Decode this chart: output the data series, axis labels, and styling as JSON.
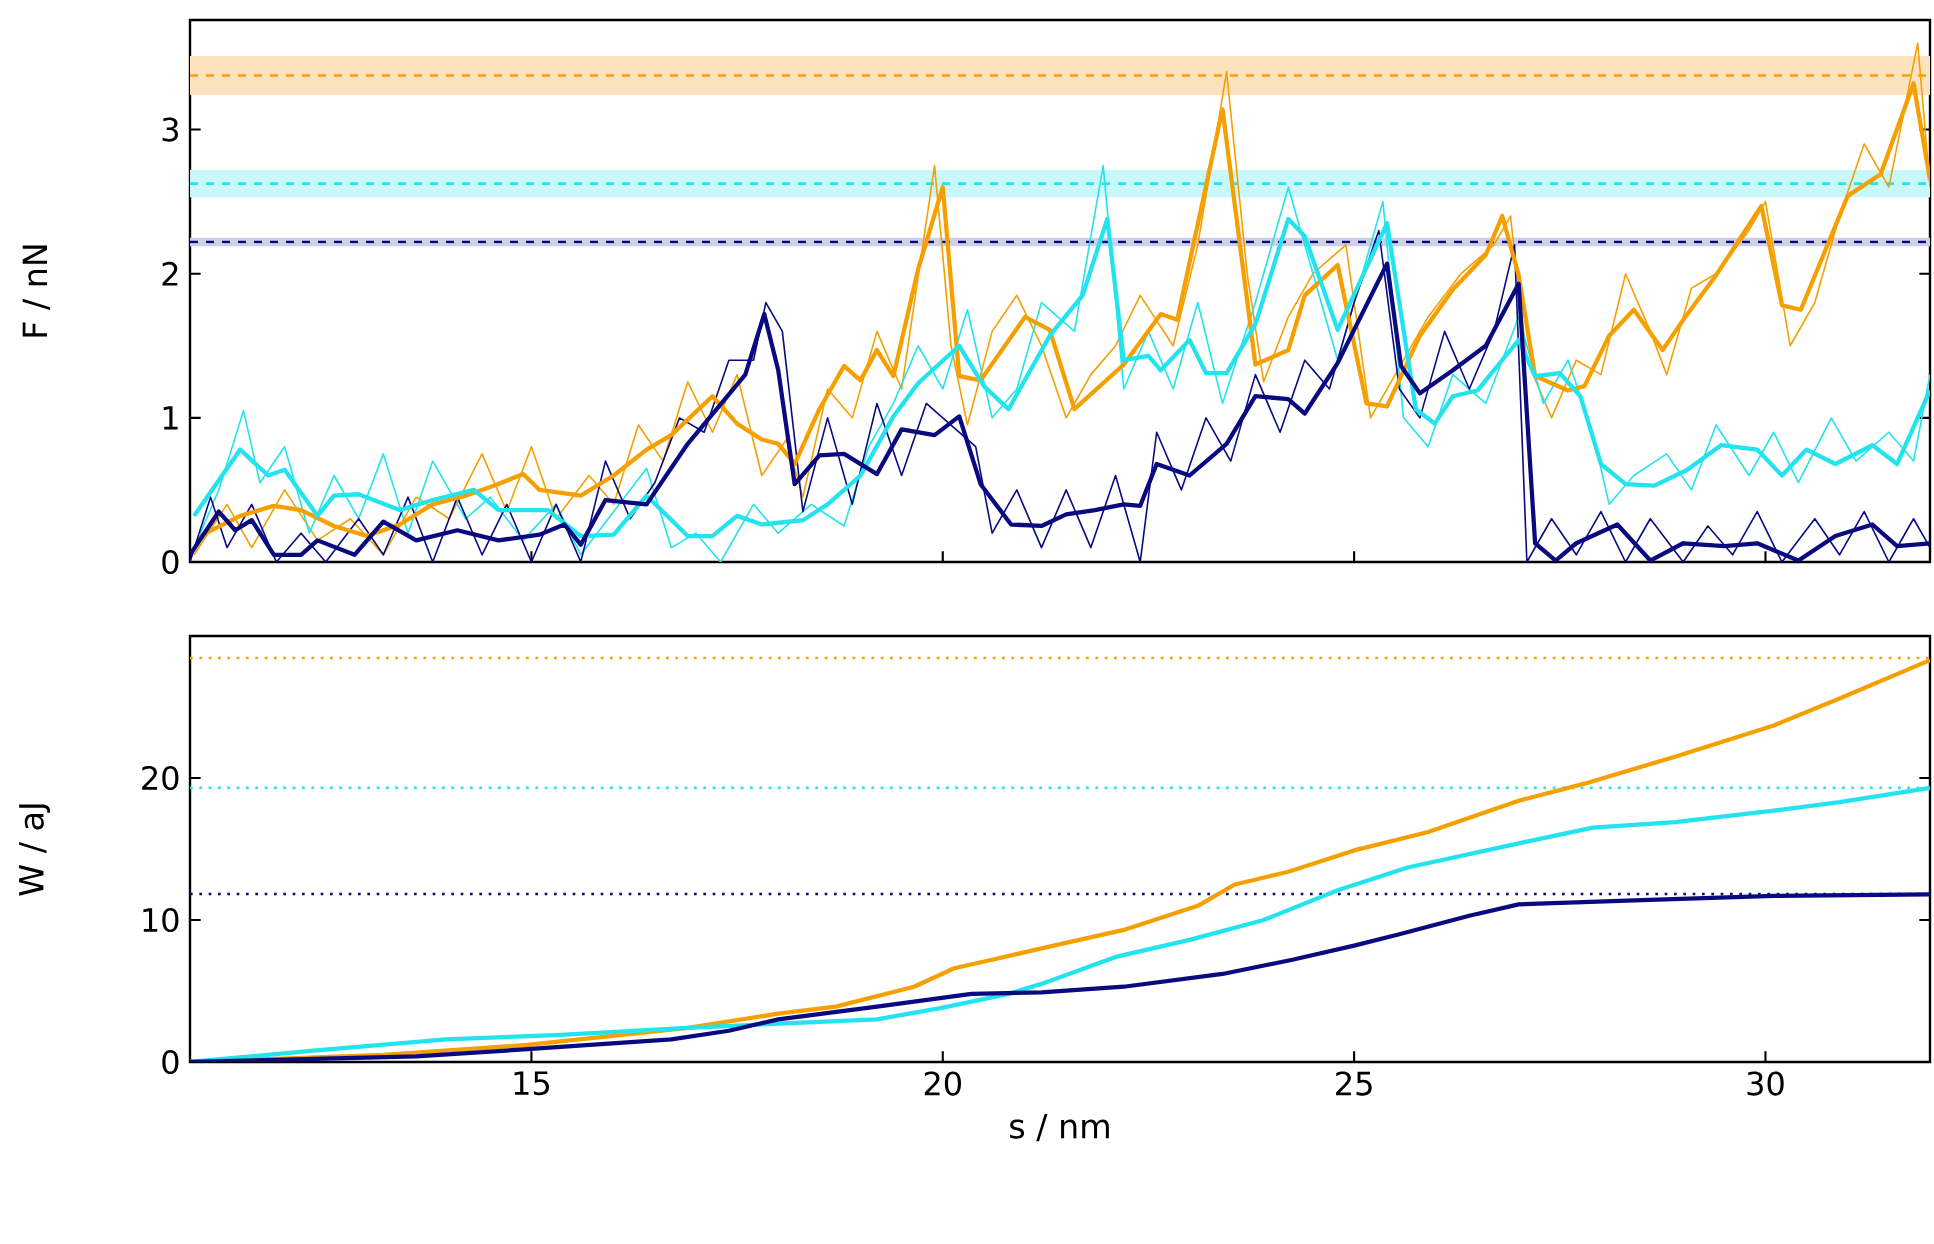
{
  "chart_data": [
    {
      "type": "line",
      "ylabel": "F / nN",
      "xlim": [
        10.85,
        32.0
      ],
      "xticks": [
        {
          "value": 15,
          "label": null
        },
        {
          "value": 20,
          "label": null
        },
        {
          "value": 25,
          "label": null
        },
        {
          "value": 30,
          "label": null
        }
      ],
      "ylim": [
        0,
        3.76
      ],
      "yticks": [
        0,
        1,
        2,
        3
      ],
      "tick_labels": "y",
      "bands": [
        {
          "axis": "y",
          "from": 3.24,
          "to": 3.51,
          "color": "#fde3bd"
        },
        {
          "axis": "y",
          "from": 2.53,
          "to": 2.72,
          "color": "#c9f8fb"
        },
        {
          "axis": "y",
          "from": 2.19,
          "to": 2.25,
          "color": "#cfcfe8"
        }
      ],
      "ref_lines": [
        {
          "axis": "y",
          "value": 3.375,
          "color": "#f5a000",
          "line_style": "dashed"
        },
        {
          "axis": "y",
          "value": 2.625,
          "color": "#22e3ee",
          "line_style": "dashed"
        },
        {
          "axis": "y",
          "value": 2.22,
          "color": "#0a0a80",
          "line_style": "dashed"
        }
      ],
      "series": [
        {
          "color": "#f5a000",
          "x": [
            10.9,
            11.3,
            11.6,
            12.0,
            12.4,
            12.8,
            13.2,
            13.6,
            14.0,
            14.4,
            14.7,
            15.0,
            15.3,
            15.7,
            16.0,
            16.3,
            16.6,
            16.9,
            17.2,
            17.5,
            17.8,
            18.1,
            18.3,
            18.6,
            18.9,
            19.2,
            19.5,
            19.9,
            20.1,
            20.3,
            20.6,
            20.9,
            21.2,
            21.5,
            21.8,
            22.1,
            22.4,
            22.8,
            23.1,
            23.45,
            23.7,
            23.9,
            24.2,
            24.5,
            24.9,
            25.2,
            25.5,
            25.9,
            26.3,
            26.7,
            26.9,
            27.1,
            27.4,
            27.7,
            28.0,
            28.3,
            28.6,
            28.8,
            29.1,
            29.4,
            29.8,
            30.0,
            30.3,
            30.6,
            30.9,
            31.2,
            31.5,
            31.85,
            32.0
          ],
          "values": [
            0.05,
            0.4,
            0.1,
            0.5,
            0.15,
            0.3,
            0.05,
            0.45,
            0.3,
            0.75,
            0.35,
            0.8,
            0.3,
            0.6,
            0.4,
            0.95,
            0.7,
            1.25,
            0.9,
            1.3,
            0.6,
            0.85,
            0.45,
            1.2,
            1.0,
            1.6,
            1.2,
            2.75,
            1.5,
            0.95,
            1.6,
            1.85,
            1.5,
            1.0,
            1.3,
            1.5,
            1.85,
            1.5,
            2.2,
            3.4,
            2.0,
            1.25,
            1.7,
            2.0,
            2.2,
            1.0,
            1.3,
            1.7,
            2.0,
            2.2,
            2.4,
            1.4,
            1.0,
            1.4,
            1.3,
            2.0,
            1.6,
            1.3,
            1.9,
            2.0,
            2.3,
            2.5,
            1.5,
            1.8,
            2.4,
            2.9,
            2.6,
            3.6,
            2.6
          ]
        },
        {
          "color": "#22e3ee",
          "x": [
            10.9,
            11.2,
            11.5,
            11.7,
            12.0,
            12.3,
            12.6,
            12.9,
            13.2,
            13.5,
            13.8,
            14.2,
            14.5,
            14.9,
            15.3,
            15.6,
            16.0,
            16.4,
            16.7,
            17.0,
            17.3,
            17.7,
            18.0,
            18.4,
            18.8,
            19.1,
            19.4,
            19.7,
            20.0,
            20.3,
            20.6,
            20.9,
            21.2,
            21.6,
            21.95,
            22.2,
            22.5,
            22.8,
            23.1,
            23.4,
            23.8,
            24.2,
            24.5,
            24.8,
            25.2,
            25.35,
            25.6,
            25.9,
            26.2,
            26.6,
            27.0,
            27.3,
            27.6,
            27.9,
            28.1,
            28.4,
            28.8,
            29.1,
            29.4,
            29.8,
            30.1,
            30.4,
            30.8,
            31.1,
            31.5,
            31.8,
            32.0
          ],
          "values": [
            0.1,
            0.5,
            1.05,
            0.55,
            0.8,
            0.2,
            0.6,
            0.3,
            0.75,
            0.2,
            0.7,
            0.3,
            0.45,
            0.15,
            0.4,
            0.05,
            0.35,
            0.65,
            0.1,
            0.2,
            0.0,
            0.4,
            0.2,
            0.4,
            0.25,
            0.8,
            1.1,
            1.5,
            1.2,
            1.75,
            1.0,
            1.2,
            1.8,
            1.6,
            2.75,
            1.2,
            1.6,
            1.2,
            1.8,
            1.1,
            1.8,
            2.6,
            2.0,
            1.4,
            2.2,
            2.5,
            1.0,
            0.8,
            1.3,
            1.1,
            1.7,
            1.1,
            1.4,
            0.9,
            0.4,
            0.6,
            0.75,
            0.5,
            0.95,
            0.6,
            0.9,
            0.55,
            1.0,
            0.7,
            0.9,
            0.7,
            1.3
          ]
        },
        {
          "color": "#0a0a80",
          "x": [
            10.85,
            11.1,
            11.3,
            11.6,
            11.9,
            12.2,
            12.5,
            12.9,
            13.2,
            13.5,
            13.8,
            14.1,
            14.4,
            14.7,
            15.0,
            15.3,
            15.6,
            15.9,
            16.2,
            16.5,
            16.8,
            17.1,
            17.4,
            17.7,
            17.85,
            18.05,
            18.3,
            18.6,
            18.9,
            19.2,
            19.5,
            19.8,
            20.1,
            20.4,
            20.6,
            20.9,
            21.2,
            21.5,
            21.8,
            22.1,
            22.4,
            22.6,
            22.9,
            23.2,
            23.5,
            23.8,
            24.1,
            24.4,
            24.7,
            25.0,
            25.3,
            25.55,
            25.8,
            26.1,
            26.4,
            26.7,
            26.95,
            27.1,
            27.4,
            27.7,
            28.0,
            28.3,
            28.6,
            29.0,
            29.3,
            29.6,
            29.9,
            30.2,
            30.6,
            30.9,
            31.2,
            31.5,
            31.8,
            32.0
          ],
          "values": [
            0.0,
            0.45,
            0.1,
            0.4,
            0.0,
            0.2,
            0.0,
            0.3,
            0.05,
            0.45,
            0.0,
            0.45,
            0.05,
            0.4,
            0.0,
            0.4,
            0.0,
            0.7,
            0.3,
            0.55,
            1.0,
            0.9,
            1.4,
            1.4,
            1.8,
            1.6,
            0.35,
            1.0,
            0.4,
            1.1,
            0.6,
            1.1,
            0.95,
            0.8,
            0.2,
            0.5,
            0.1,
            0.5,
            0.1,
            0.6,
            0.0,
            0.9,
            0.5,
            1.0,
            0.7,
            1.3,
            0.9,
            1.4,
            1.2,
            1.8,
            2.3,
            1.2,
            1.0,
            1.6,
            1.2,
            1.6,
            2.2,
            0.0,
            0.3,
            0.05,
            0.35,
            0.0,
            0.3,
            0.0,
            0.25,
            0.05,
            0.35,
            0.0,
            0.3,
            0.05,
            0.35,
            0.0,
            0.3,
            0.1
          ]
        },
        {
          "color": "#f5a000",
          "x": [
            10.97,
            11.46,
            11.87,
            12.2,
            12.6,
            13.0,
            13.4,
            13.8,
            14.2,
            14.55,
            14.9,
            15.1,
            15.6,
            16.0,
            16.4,
            16.7,
            17.2,
            17.5,
            17.8,
            18.0,
            18.2,
            18.5,
            18.8,
            19.0,
            19.2,
            19.4,
            19.7,
            20.0,
            20.2,
            20.46,
            21.0,
            21.3,
            21.6,
            22.2,
            22.65,
            22.85,
            23.4,
            23.8,
            24.2,
            24.4,
            24.8,
            25.15,
            25.4,
            25.8,
            26.2,
            26.6,
            26.8,
            27.0,
            27.2,
            27.6,
            27.8,
            28.1,
            28.4,
            28.75,
            29.0,
            29.4,
            29.95,
            30.2,
            30.43,
            31.0,
            31.4,
            31.8,
            32.0
          ],
          "values": [
            0.18,
            0.32,
            0.39,
            0.36,
            0.25,
            0.18,
            0.26,
            0.4,
            0.46,
            0.53,
            0.61,
            0.5,
            0.46,
            0.6,
            0.78,
            0.88,
            1.15,
            0.96,
            0.85,
            0.82,
            0.68,
            1.06,
            1.36,
            1.26,
            1.47,
            1.29,
            2.03,
            2.6,
            1.29,
            1.26,
            1.7,
            1.61,
            1.06,
            1.37,
            1.72,
            1.68,
            3.14,
            1.37,
            1.47,
            1.85,
            2.06,
            1.1,
            1.08,
            1.57,
            1.89,
            2.13,
            2.4,
            1.99,
            1.29,
            1.19,
            1.22,
            1.57,
            1.75,
            1.47,
            1.68,
            1.99,
            2.47,
            1.78,
            1.75,
            2.54,
            2.69,
            3.32,
            2.65
          ]
        },
        {
          "color": "#22e3ee",
          "x": [
            10.9,
            11.46,
            11.8,
            12.0,
            12.4,
            12.6,
            12.9,
            13.4,
            13.8,
            14.3,
            14.6,
            15.2,
            15.6,
            16.0,
            16.4,
            16.9,
            17.2,
            17.5,
            17.8,
            18.3,
            18.6,
            19.0,
            19.4,
            19.7,
            20.2,
            20.5,
            20.8,
            21.3,
            21.7,
            22.0,
            22.2,
            22.5,
            22.65,
            23.0,
            23.2,
            23.45,
            23.8,
            24.2,
            24.4,
            24.8,
            25.4,
            25.75,
            25.98,
            26.2,
            26.5,
            27.0,
            27.2,
            27.5,
            27.75,
            28.0,
            28.3,
            28.65,
            29.05,
            29.46,
            29.9,
            30.2,
            30.5,
            30.85,
            31.3,
            31.6,
            32.0
          ],
          "values": [
            0.32,
            0.78,
            0.6,
            0.64,
            0.32,
            0.46,
            0.47,
            0.36,
            0.43,
            0.5,
            0.36,
            0.36,
            0.18,
            0.19,
            0.46,
            0.18,
            0.18,
            0.32,
            0.26,
            0.29,
            0.4,
            0.6,
            1.01,
            1.24,
            1.5,
            1.22,
            1.06,
            1.57,
            1.85,
            2.38,
            1.4,
            1.43,
            1.33,
            1.54,
            1.31,
            1.31,
            1.65,
            2.38,
            2.26,
            1.61,
            2.35,
            1.06,
            0.96,
            1.15,
            1.19,
            1.54,
            1.29,
            1.31,
            1.15,
            0.68,
            0.54,
            0.53,
            0.64,
            0.81,
            0.78,
            0.6,
            0.78,
            0.68,
            0.81,
            0.68,
            1.19
          ]
        },
        {
          "color": "#0a0a80",
          "x": [
            10.85,
            11.2,
            11.4,
            11.6,
            11.87,
            12.2,
            12.4,
            12.85,
            13.2,
            13.6,
            14.1,
            14.6,
            15.1,
            15.4,
            15.6,
            15.9,
            16.4,
            16.9,
            17.6,
            17.83,
            18.0,
            18.2,
            18.5,
            18.8,
            19.2,
            19.5,
            19.9,
            20.2,
            20.46,
            20.83,
            21.2,
            21.5,
            21.85,
            22.2,
            22.4,
            22.6,
            23.0,
            23.45,
            23.8,
            24.2,
            24.4,
            24.8,
            25.4,
            25.57,
            25.8,
            26.2,
            26.6,
            27.0,
            27.2,
            27.45,
            27.7,
            28.2,
            28.6,
            29.0,
            29.5,
            29.9,
            30.4,
            30.85,
            31.3,
            31.6,
            32.0
          ],
          "values": [
            0.05,
            0.35,
            0.22,
            0.29,
            0.05,
            0.05,
            0.15,
            0.05,
            0.28,
            0.15,
            0.22,
            0.15,
            0.19,
            0.26,
            0.12,
            0.43,
            0.4,
            0.82,
            1.3,
            1.72,
            1.33,
            0.54,
            0.74,
            0.75,
            0.61,
            0.92,
            0.88,
            1.01,
            0.54,
            0.26,
            0.25,
            0.33,
            0.36,
            0.4,
            0.39,
            0.68,
            0.6,
            0.82,
            1.15,
            1.13,
            1.03,
            1.38,
            2.07,
            1.36,
            1.17,
            1.33,
            1.5,
            1.93,
            0.13,
            0.01,
            0.13,
            0.26,
            0.01,
            0.13,
            0.11,
            0.13,
            0.01,
            0.18,
            0.26,
            0.11,
            0.13
          ]
        }
      ]
    },
    {
      "type": "line",
      "xlabel": "s / nm",
      "ylabel": "W / aJ",
      "xlim": [
        10.85,
        32.0
      ],
      "xticks": [
        15,
        20,
        25,
        30
      ],
      "ylim": [
        0,
        30
      ],
      "yticks": [
        0,
        10,
        20
      ],
      "ref_lines": [
        {
          "axis": "y",
          "value": 28.45,
          "color": "#f5a000",
          "line_style": "dotted"
        },
        {
          "axis": "y",
          "value": 19.3,
          "color": "#22e3ee",
          "line_style": "dotted"
        },
        {
          "axis": "y",
          "value": 11.83,
          "color": "#0a0a80",
          "line_style": "dotted"
        }
      ],
      "series": [
        {
          "color": "#f5a000",
          "x": [
            10.85,
            13.2,
            14.95,
            16.9,
            18.0,
            18.7,
            19.65,
            20.14,
            20.6,
            21.2,
            22.2,
            23.1,
            23.55,
            24.2,
            25.0,
            25.9,
            27.0,
            27.8,
            28.9,
            30.1,
            30.9,
            32.0
          ],
          "values": [
            0,
            0.5,
            1.2,
            2.4,
            3.4,
            3.9,
            5.3,
            6.6,
            7.2,
            8.0,
            9.3,
            11.0,
            12.5,
            13.4,
            14.9,
            16.2,
            18.4,
            19.6,
            21.5,
            23.7,
            25.6,
            28.3
          ]
        },
        {
          "color": "#22e3ee",
          "x": [
            10.85,
            12.35,
            13.96,
            15.3,
            16.9,
            18.0,
            19.2,
            19.97,
            20.8,
            21.2,
            22.1,
            23.0,
            23.9,
            24.8,
            25.65,
            27.0,
            27.9,
            28.9,
            30.1,
            30.9,
            32.0
          ],
          "values": [
            0,
            0.8,
            1.6,
            1.9,
            2.4,
            2.7,
            3.0,
            3.8,
            4.8,
            5.5,
            7.4,
            8.6,
            10.0,
            12.1,
            13.7,
            15.4,
            16.5,
            16.9,
            17.7,
            18.3,
            19.3
          ]
        },
        {
          "color": "#0a0a80",
          "x": [
            10.85,
            13.6,
            14.95,
            16.7,
            17.4,
            18.0,
            19.2,
            20.35,
            21.2,
            22.2,
            23.4,
            24.25,
            25.0,
            25.55,
            26.4,
            27.0,
            28.5,
            30.1,
            32.0
          ],
          "values": [
            0,
            0.4,
            0.9,
            1.6,
            2.2,
            3.0,
            3.9,
            4.8,
            4.9,
            5.3,
            6.2,
            7.2,
            8.2,
            9.0,
            10.3,
            11.1,
            11.4,
            11.7,
            11.8
          ]
        }
      ]
    }
  ]
}
